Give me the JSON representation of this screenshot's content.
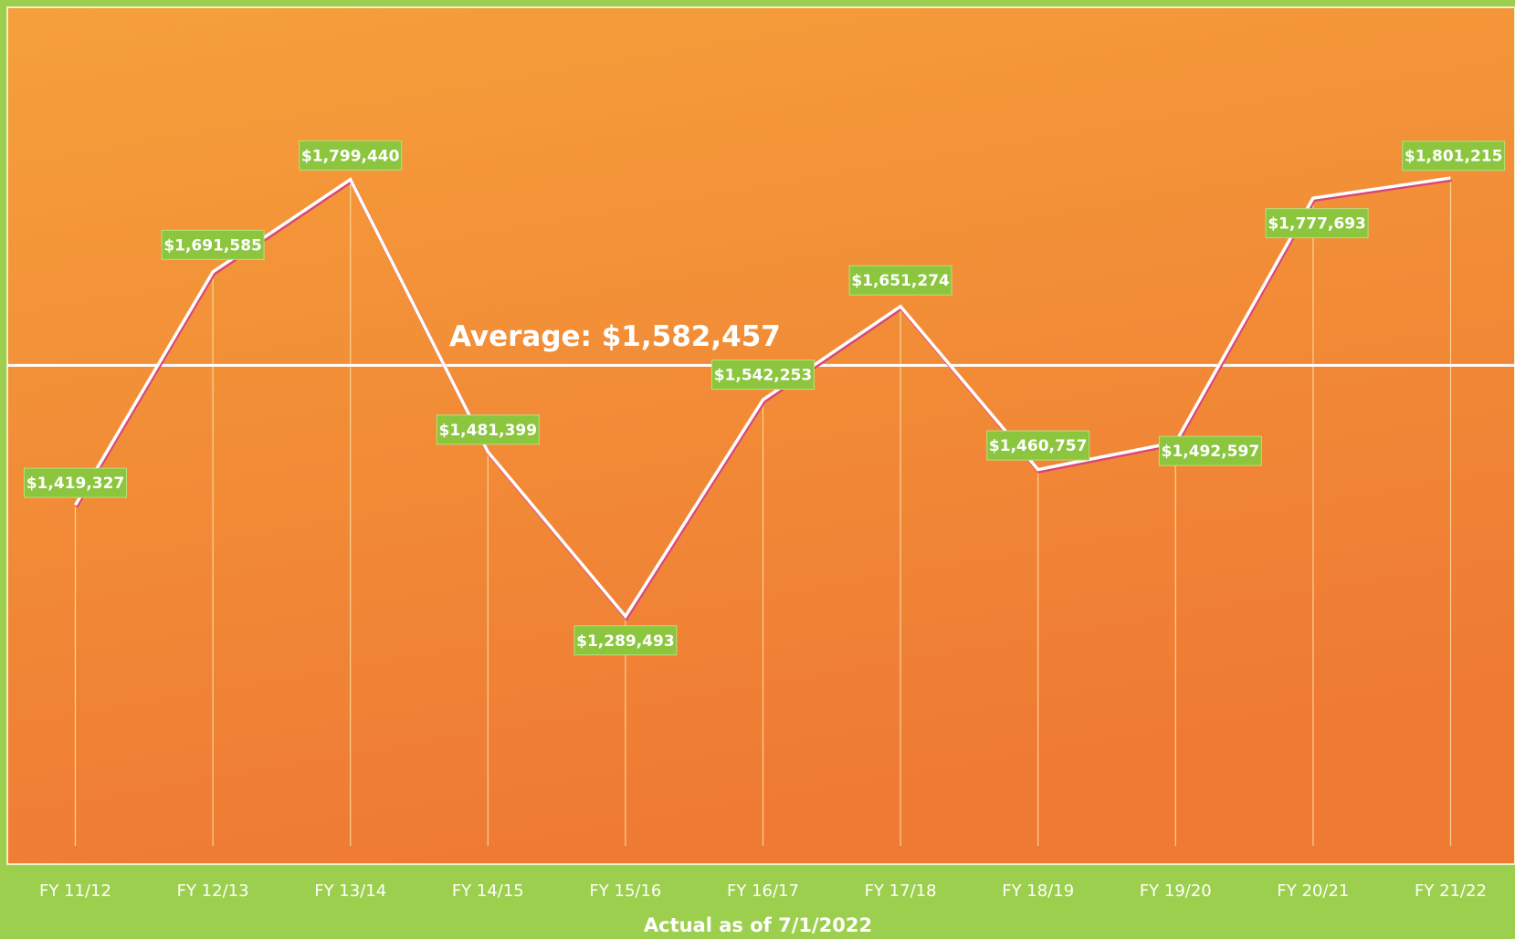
{
  "chart_data": {
    "type": "line",
    "x_label": "Actual as of 7/1/2022",
    "categories": [
      "FY 11/12",
      "FY 12/13",
      "FY 13/14",
      "FY 14/15",
      "FY 15/16",
      "FY 16/17",
      "FY 17/18",
      "FY 18/19",
      "FY 19/20",
      "FY 20/21",
      "FY 21/22"
    ],
    "series": [
      {
        "color": "#ffffff",
        "values": [
          1419327,
          1691585,
          1799440,
          1481399,
          1289493,
          1542253,
          1651274,
          1460757,
          1492597,
          1777693,
          1801215
        ],
        "value_labels": [
          "$1,419,327",
          "$1,691,585",
          "$1,799,440",
          "$1,481,399",
          "$1,289,493",
          "$1,542,253",
          "$1,651,274",
          "$1,460,757",
          "$1,492,597",
          "$1,777,693",
          "$1,801,215"
        ]
      }
    ],
    "average": {
      "value": 1582457,
      "label": "Average:  $1,582,457"
    },
    "ylim": [
      1000000,
      2000000
    ],
    "label_color": "#8cc63f"
  }
}
